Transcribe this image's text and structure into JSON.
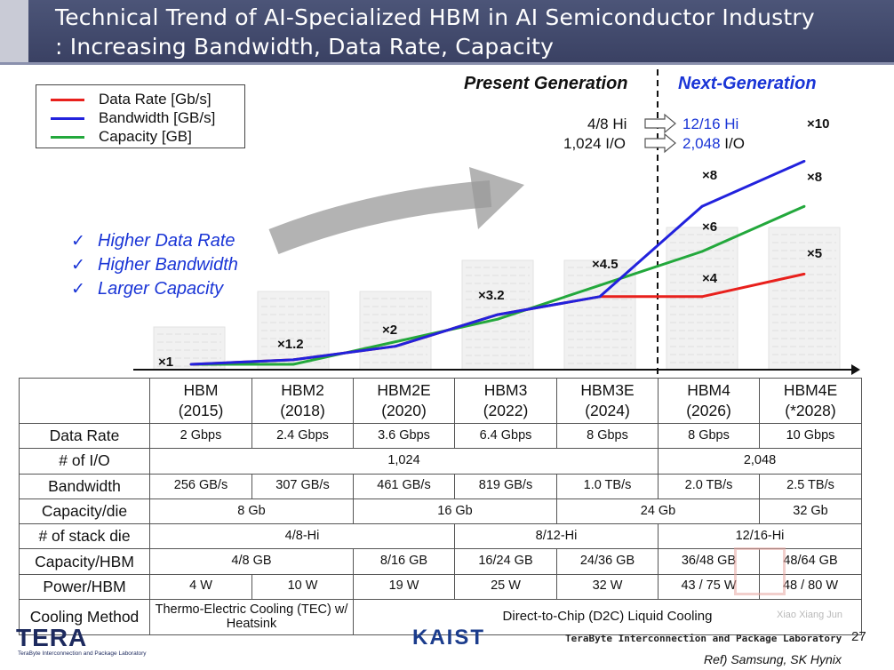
{
  "header": {
    "title_line1": "Technical Trend of AI-Specialized HBM in AI Semiconductor Industry",
    "title_line2": ": Increasing Bandwidth, Data Rate, Capacity"
  },
  "colors": {
    "header_bg": "#3f4668",
    "data_rate": "#e8201c",
    "bandwidth": "#2222dd",
    "capacity": "#23a83c",
    "next_gen_text": "#1a35d6"
  },
  "legend": {
    "items": [
      {
        "label": "Data Rate [Gb/s]",
        "color": "#e8201c"
      },
      {
        "label": "Bandwidth [GB/s]",
        "color": "#2222dd"
      },
      {
        "label": "Capacity [GB]",
        "color": "#23a83c"
      }
    ]
  },
  "generations": {
    "present": "Present Generation",
    "next": "Next-Generation"
  },
  "spec_change": {
    "current_hi": "4/8 Hi",
    "current_io": "1,024 I/O",
    "next_hi": "12/16 Hi",
    "next_io_value": "2,048",
    "next_io_unit": " I/O"
  },
  "benefits": [
    "Higher Data Rate",
    "Higher Bandwidth",
    "Larger Capacity"
  ],
  "chart_data": {
    "type": "line",
    "x": [
      "HBM",
      "HBM2",
      "HBM2E",
      "HBM3",
      "HBM3E",
      "HBM4",
      "HBM4E"
    ],
    "series": [
      {
        "name": "Data Rate [Gb/s]",
        "values": [
          1,
          1.2,
          1.8,
          3.2,
          4,
          4,
          5
        ]
      },
      {
        "name": "Bandwidth [GB/s]",
        "values": [
          1,
          1.2,
          1.8,
          3.2,
          4,
          8,
          10
        ]
      },
      {
        "name": "Capacity [GB]",
        "values": [
          1,
          1,
          2,
          3,
          4.5,
          6,
          8
        ]
      }
    ],
    "annotations": [
      {
        "x": "HBM",
        "text": "×1"
      },
      {
        "x": "HBM2",
        "text": "×1.2"
      },
      {
        "x": "HBM2E",
        "text": "×2"
      },
      {
        "x": "HBM3",
        "text": "×3.2"
      },
      {
        "x": "HBM3E",
        "text": "×4.5"
      },
      {
        "x": "HBM4",
        "text": "×8",
        "series": "Bandwidth [GB/s]"
      },
      {
        "x": "HBM4",
        "text": "×6",
        "series": "Capacity [GB]"
      },
      {
        "x": "HBM4",
        "text": "×4",
        "series": "Data Rate [Gb/s]"
      },
      {
        "x": "HBM4E",
        "text": "×10",
        "series": "Bandwidth [GB/s]"
      },
      {
        "x": "HBM4E",
        "text": "×8",
        "series": "Capacity [GB]"
      },
      {
        "x": "HBM4E",
        "text": "×5",
        "series": "Data Rate [Gb/s]"
      }
    ],
    "ylim": [
      0,
      11
    ],
    "grid": false,
    "legend": "top-left"
  },
  "table": {
    "columns": [
      {
        "name": "HBM",
        "year": "(2015)"
      },
      {
        "name": "HBM2",
        "year": "(2018)"
      },
      {
        "name": "HBM2E",
        "year": "(2020)"
      },
      {
        "name": "HBM3",
        "year": "(2022)"
      },
      {
        "name": "HBM3E",
        "year": "(2024)"
      },
      {
        "name": "HBM4",
        "year": "(2026)"
      },
      {
        "name": "HBM4E",
        "year": "(*2028)"
      }
    ],
    "rows": [
      {
        "label": "Data Rate",
        "cells": [
          {
            "text": "2 Gbps",
            "span": 1
          },
          {
            "text": "2.4 Gbps",
            "span": 1
          },
          {
            "text": "3.6 Gbps",
            "span": 1
          },
          {
            "text": "6.4 Gbps",
            "span": 1
          },
          {
            "text": "8 Gbps",
            "span": 1
          },
          {
            "text": "8 Gbps",
            "span": 1
          },
          {
            "text": "10 Gbps",
            "span": 1
          }
        ]
      },
      {
        "label": "# of I/O",
        "cells": [
          {
            "text": "1,024",
            "span": 5
          },
          {
            "text": "2,048",
            "span": 2
          }
        ]
      },
      {
        "label": "Bandwidth",
        "cells": [
          {
            "text": "256 GB/s",
            "span": 1
          },
          {
            "text": "307 GB/s",
            "span": 1
          },
          {
            "text": "461 GB/s",
            "span": 1
          },
          {
            "text": "819 GB/s",
            "span": 1
          },
          {
            "text": "1.0 TB/s",
            "span": 1
          },
          {
            "text": "2.0 TB/s",
            "span": 1
          },
          {
            "text": "2.5 TB/s",
            "span": 1
          }
        ]
      },
      {
        "label": "Capacity/die",
        "cells": [
          {
            "text": "8 Gb",
            "span": 2
          },
          {
            "text": "16 Gb",
            "span": 2
          },
          {
            "text": "24 Gb",
            "span": 2
          },
          {
            "text": "32 Gb",
            "span": 1
          }
        ]
      },
      {
        "label": "# of stack die",
        "cells": [
          {
            "text": "4/8-Hi",
            "span": 3
          },
          {
            "text": "8/12-Hi",
            "span": 2
          },
          {
            "text": "12/16-Hi",
            "span": 2
          }
        ]
      },
      {
        "label": "Capacity/HBM",
        "cells": [
          {
            "text": "4/8 GB",
            "span": 2
          },
          {
            "text": "8/16 GB",
            "span": 1
          },
          {
            "text": "16/24 GB",
            "span": 1
          },
          {
            "text": "24/36 GB",
            "span": 1
          },
          {
            "text": "36/48 GB",
            "span": 1
          },
          {
            "text": "48/64 GB",
            "span": 1
          }
        ]
      },
      {
        "label": "Power/HBM",
        "cells": [
          {
            "text": "4 W",
            "span": 1
          },
          {
            "text": "10 W",
            "span": 1
          },
          {
            "text": "19 W",
            "span": 1
          },
          {
            "text": "25 W",
            "span": 1
          },
          {
            "text": "32 W",
            "span": 1
          },
          {
            "text": "43 / 75 W",
            "span": 1
          },
          {
            "text": "48 / 80 W",
            "span": 1
          }
        ]
      },
      {
        "label": "Cooling Method",
        "cells": [
          {
            "text": "Thermo-Electric Cooling (TEC) w/ Heatsink",
            "span": 2
          },
          {
            "text": "Direct-to-Chip (D2C) Liquid Cooling",
            "span": 5
          }
        ]
      }
    ]
  },
  "footer": {
    "lab": "TeraByte Interconnection and Package Laboratory",
    "page": "27",
    "ref": "Ref) Samsung, SK Hynix",
    "logo_tera": "TERA",
    "logo_lab": "TeraByte Interconnection and Package Laboratory",
    "logo_kaist": "KAIST",
    "watermark": "Xiao Xiang Jun"
  }
}
